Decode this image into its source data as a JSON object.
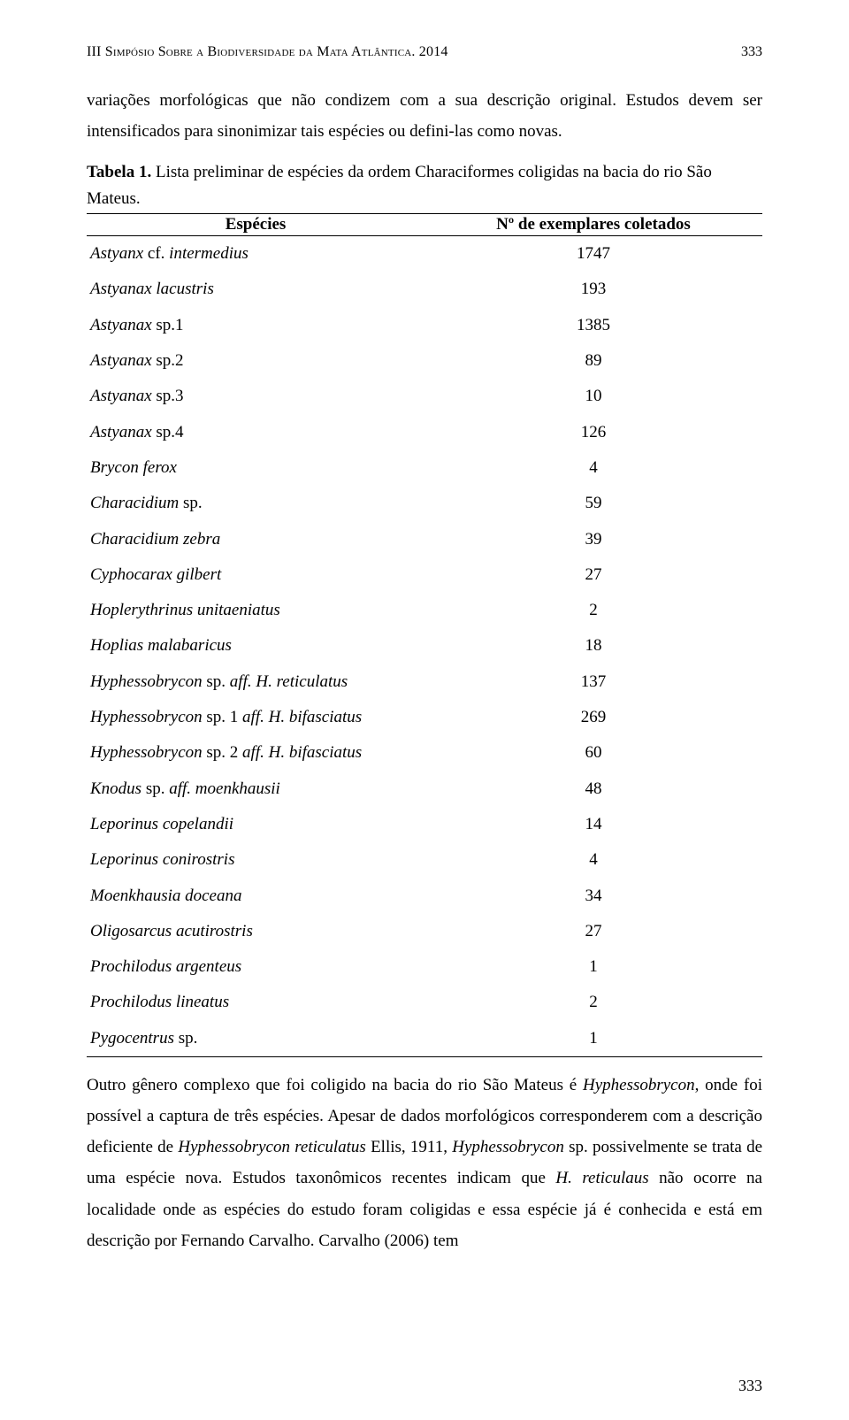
{
  "header": {
    "running_title": "III Simpósio Sobre a Biodiversidade da Mata Atlântica. 2014",
    "page_side": "333"
  },
  "paragraph_top": "variações morfológicas que não condizem com a sua descrição original. Estudos devem ser intensificados para sinonimizar tais espécies ou defini-las como novas.",
  "table": {
    "caption_label": "Tabela 1.",
    "caption_text": " Lista preliminar de espécies da ordem Characiformes coligidas na bacia do rio São Mateus.",
    "col_species": "Espécies",
    "col_count": "Nº de exemplares coletados",
    "rows": [
      {
        "species_html": "Astyanx <span class=\"roman\">cf.</span> intermedius",
        "count": "1747"
      },
      {
        "species_html": "Astyanax lacustris",
        "count": "193"
      },
      {
        "species_html": "Astyanax <span class=\"roman\">sp.1</span>",
        "count": "1385"
      },
      {
        "species_html": "Astyanax <span class=\"roman\">sp.2</span>",
        "count": "89"
      },
      {
        "species_html": "Astyanax <span class=\"roman\">sp.3</span>",
        "count": "10"
      },
      {
        "species_html": "Astyanax <span class=\"roman\">sp.4</span>",
        "count": "126"
      },
      {
        "species_html": "Brycon ferox",
        "count": "4"
      },
      {
        "species_html": "Characidium <span class=\"roman\">sp.</span>",
        "count": "59"
      },
      {
        "species_html": "Characidium zebra",
        "count": "39"
      },
      {
        "species_html": "Cyphocarax gilbert",
        "count": "27"
      },
      {
        "species_html": "Hoplerythrinus unitaeniatus",
        "count": "2"
      },
      {
        "species_html": "Hoplias malabaricus",
        "count": "18"
      },
      {
        "species_html": "Hyphessobrycon <span class=\"roman\">sp.</span> aff. H. reticulatus",
        "count": "137"
      },
      {
        "species_html": "Hyphessobrycon <span class=\"roman\">sp. 1</span> aff. H. bifasciatus",
        "count": "269"
      },
      {
        "species_html": "Hyphessobrycon <span class=\"roman\">sp. 2</span> aff. H. bifasciatus",
        "count": "60"
      },
      {
        "species_html": "Knodus <span class=\"roman\">sp.</span> aff. moenkhausii",
        "count": "48"
      },
      {
        "species_html": "Leporinus copelandii",
        "count": "14"
      },
      {
        "species_html": "Leporinus conirostris",
        "count": "4"
      },
      {
        "species_html": "Moenkhausia doceana",
        "count": "34"
      },
      {
        "species_html": "Oligosarcus acutirostris",
        "count": "27"
      },
      {
        "species_html": "Prochilodus argenteus",
        "count": "1"
      },
      {
        "species_html": "Prochilodus lineatus",
        "count": "2"
      },
      {
        "species_html": "Pygocentrus <span class=\"roman\">sp.</span>",
        "count": "1"
      }
    ]
  },
  "paragraph_bottom_html": "Outro gênero complexo que foi coligido na bacia do rio São Mateus é <span class=\"italic\">Hyphessobrycon</span>, onde foi possível a captura de três espécies. Apesar de dados morfológicos corresponderem com a descrição deficiente de <span class=\"italic\">Hyphessobrycon reticulatus</span> Ellis, 1911, <span class=\"italic\">Hyphessobrycon</span> sp. possivelmente se trata de uma espécie nova. Estudos taxonômicos recentes indicam que <span class=\"italic\">H. reticulaus</span> não ocorre na localidade onde as espécies do estudo foram coligidas e essa espécie já é conhecida e está em descrição por Fernando Carvalho. Carvalho (2006) tem",
  "footer": {
    "page_number": "333"
  }
}
